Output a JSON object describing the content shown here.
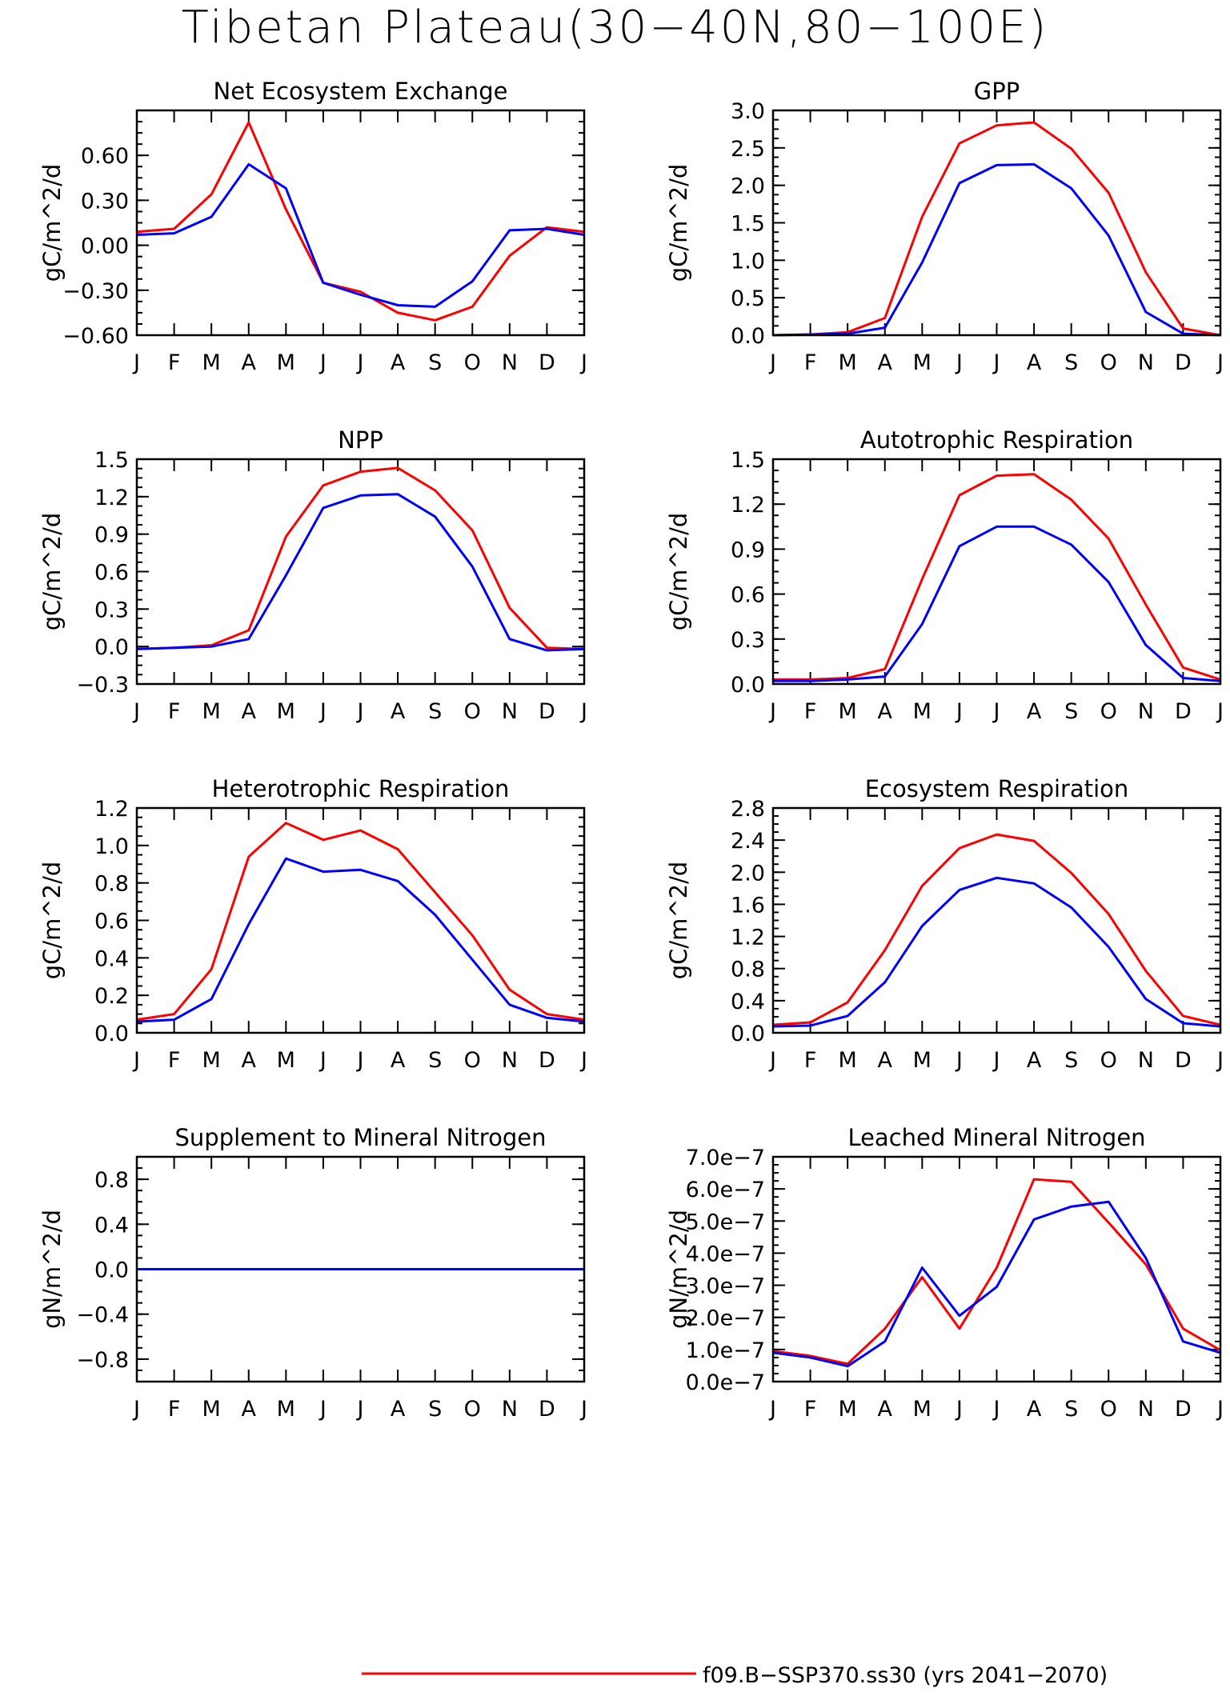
{
  "page": {
    "title": "Tibetan Plateau(30−40N,80−100E)",
    "legend_red": "f09.B−SSP370.ss30 (yrs 2041−2070)"
  },
  "colors": {
    "series1": "#ff0000",
    "series2": "#0000ff"
  },
  "months": [
    "J",
    "F",
    "M",
    "A",
    "M",
    "J",
    "J",
    "A",
    "S",
    "O",
    "N",
    "D",
    "J"
  ],
  "chart_data": [
    {
      "type": "line",
      "title": "Net Ecosystem Exchange",
      "ylabel": "gC/m^2/d",
      "ylim": [
        -0.6,
        0.9
      ],
      "yticks": [
        -0.6,
        -0.3,
        0.0,
        0.3,
        0.6
      ],
      "ytick_labels": [
        "−0.60",
        "−0.30",
        "0.00",
        "0.30",
        "0.60"
      ],
      "x": [
        "J",
        "F",
        "M",
        "A",
        "M",
        "J",
        "J",
        "A",
        "S",
        "O",
        "N",
        "D",
        "J"
      ],
      "series": [
        {
          "values": [
            0.09,
            0.11,
            0.34,
            0.82,
            0.24,
            -0.25,
            -0.31,
            -0.45,
            -0.5,
            -0.41,
            -0.07,
            0.12,
            0.09
          ]
        },
        {
          "values": [
            0.07,
            0.08,
            0.19,
            0.54,
            0.38,
            -0.25,
            -0.33,
            -0.4,
            -0.41,
            -0.24,
            0.1,
            0.11,
            0.07
          ]
        }
      ]
    },
    {
      "type": "line",
      "title": "GPP",
      "ylabel": "gC/m^2/d",
      "ylim": [
        0,
        3.0
      ],
      "yticks": [
        0,
        0.5,
        1.0,
        1.5,
        2.0,
        2.5,
        3.0
      ],
      "ytick_labels": [
        "0.0",
        "0.5",
        "1.0",
        "1.5",
        "2.0",
        "2.5",
        "3.0"
      ],
      "x": [
        "J",
        "F",
        "M",
        "A",
        "M",
        "J",
        "J",
        "A",
        "S",
        "O",
        "N",
        "D",
        "J"
      ],
      "series": [
        {
          "values": [
            0.0,
            0.01,
            0.04,
            0.23,
            1.58,
            2.56,
            2.8,
            2.84,
            2.49,
            1.9,
            0.84,
            0.09,
            0.0
          ]
        },
        {
          "values": [
            0.0,
            0.01,
            0.02,
            0.1,
            0.97,
            2.03,
            2.27,
            2.28,
            1.96,
            1.33,
            0.31,
            0.02,
            0.0
          ]
        }
      ]
    },
    {
      "type": "line",
      "title": "NPP",
      "ylabel": "gC/m^2/d",
      "ylim": [
        -0.3,
        1.5
      ],
      "yticks": [
        -0.3,
        0.0,
        0.3,
        0.6,
        0.9,
        1.2,
        1.5
      ],
      "ytick_labels": [
        "−0.3",
        "0.0",
        "0.3",
        "0.6",
        "0.9",
        "1.2",
        "1.5"
      ],
      "x": [
        "J",
        "F",
        "M",
        "A",
        "M",
        "J",
        "J",
        "A",
        "S",
        "O",
        "N",
        "D",
        "J"
      ],
      "series": [
        {
          "values": [
            -0.02,
            -0.01,
            0.01,
            0.13,
            0.88,
            1.29,
            1.4,
            1.43,
            1.25,
            0.93,
            0.31,
            -0.01,
            -0.02
          ]
        },
        {
          "values": [
            -0.02,
            -0.01,
            0.0,
            0.06,
            0.57,
            1.11,
            1.21,
            1.22,
            1.04,
            0.64,
            0.06,
            -0.03,
            -0.02
          ]
        }
      ]
    },
    {
      "type": "line",
      "title": "Autotrophic Respiration",
      "ylabel": "gC/m^2/d",
      "ylim": [
        0,
        1.5
      ],
      "yticks": [
        0,
        0.3,
        0.6,
        0.9,
        1.2,
        1.5
      ],
      "ytick_labels": [
        "0.0",
        "0.3",
        "0.6",
        "0.9",
        "1.2",
        "1.5"
      ],
      "x": [
        "J",
        "F",
        "M",
        "A",
        "M",
        "J",
        "J",
        "A",
        "S",
        "O",
        "N",
        "D",
        "J"
      ],
      "series": [
        {
          "values": [
            0.03,
            0.03,
            0.04,
            0.1,
            0.7,
            1.26,
            1.39,
            1.4,
            1.23,
            0.97,
            0.53,
            0.11,
            0.03
          ]
        },
        {
          "values": [
            0.02,
            0.02,
            0.03,
            0.05,
            0.4,
            0.92,
            1.05,
            1.05,
            0.93,
            0.68,
            0.26,
            0.04,
            0.02
          ]
        }
      ]
    },
    {
      "type": "line",
      "title": "Heterotrophic Respiration",
      "ylabel": "gC/m^2/d",
      "ylim": [
        0,
        1.2
      ],
      "yticks": [
        0,
        0.2,
        0.4,
        0.6,
        0.8,
        1.0,
        1.2
      ],
      "ytick_labels": [
        "0.0",
        "0.2",
        "0.4",
        "0.6",
        "0.8",
        "1.0",
        "1.2"
      ],
      "x": [
        "J",
        "F",
        "M",
        "A",
        "M",
        "J",
        "J",
        "A",
        "S",
        "O",
        "N",
        "D",
        "J"
      ],
      "series": [
        {
          "values": [
            0.07,
            0.1,
            0.34,
            0.94,
            1.12,
            1.03,
            1.08,
            0.98,
            0.75,
            0.52,
            0.23,
            0.1,
            0.07
          ]
        },
        {
          "values": [
            0.06,
            0.07,
            0.18,
            0.58,
            0.93,
            0.86,
            0.87,
            0.81,
            0.63,
            0.39,
            0.15,
            0.08,
            0.06
          ]
        }
      ]
    },
    {
      "type": "line",
      "title": "Ecosystem Respiration",
      "ylabel": "gC/m^2/d",
      "ylim": [
        0,
        2.8
      ],
      "yticks": [
        0,
        0.4,
        0.8,
        1.2,
        1.6,
        2.0,
        2.4,
        2.8
      ],
      "ytick_labels": [
        "0.0",
        "0.4",
        "0.8",
        "1.2",
        "1.6",
        "2.0",
        "2.4",
        "2.8"
      ],
      "x": [
        "J",
        "F",
        "M",
        "A",
        "M",
        "J",
        "J",
        "A",
        "S",
        "O",
        "N",
        "D",
        "J"
      ],
      "series": [
        {
          "values": [
            0.1,
            0.13,
            0.38,
            1.03,
            1.83,
            2.3,
            2.47,
            2.39,
            1.99,
            1.48,
            0.77,
            0.21,
            0.1
          ]
        },
        {
          "values": [
            0.08,
            0.09,
            0.21,
            0.63,
            1.33,
            1.78,
            1.93,
            1.86,
            1.56,
            1.07,
            0.42,
            0.12,
            0.08
          ]
        }
      ]
    },
    {
      "type": "line",
      "title": "Supplement to Mineral Nitrogen",
      "ylabel": "gN/m^2/d",
      "ylim": [
        -1.0,
        1.0
      ],
      "yticks": [
        -0.8,
        -0.4,
        0.0,
        0.4,
        0.8
      ],
      "ytick_labels": [
        "−0.8",
        "−0.4",
        "0.0",
        "0.4",
        "0.8"
      ],
      "x": [
        "J",
        "F",
        "M",
        "A",
        "M",
        "J",
        "J",
        "A",
        "S",
        "O",
        "N",
        "D",
        "J"
      ],
      "series": [
        {
          "values": [
            0,
            0,
            0,
            0,
            0,
            0,
            0,
            0,
            0,
            0,
            0,
            0,
            0
          ]
        },
        {
          "values": [
            0,
            0,
            0,
            0,
            0,
            0,
            0,
            0,
            0,
            0,
            0,
            0,
            0
          ]
        }
      ]
    },
    {
      "type": "line",
      "title": "Leached Mineral Nitrogen",
      "ylabel": "gN/m^2/d",
      "ylim": [
        0,
        7e-07
      ],
      "yticks": [
        0,
        1e-07,
        2e-07,
        3e-07,
        4e-07,
        5e-07,
        6e-07,
        7e-07
      ],
      "ytick_labels": [
        "0.0e−7",
        "1.0e−7",
        "2.0e−7",
        "3.0e−7",
        "4.0e−7",
        "5.0e−7",
        "6.0e−7",
        "7.0e−7"
      ],
      "x": [
        "J",
        "F",
        "M",
        "A",
        "M",
        "J",
        "J",
        "A",
        "S",
        "O",
        "N",
        "D",
        "J"
      ],
      "series": [
        {
          "values": [
            9.5e-08,
            8e-08,
            5.5e-08,
            1.65e-07,
            3.25e-07,
            1.65e-07,
            3.55e-07,
            6.3e-07,
            6.22e-07,
            4.95e-07,
            3.65e-07,
            1.65e-07,
            9.8e-08
          ]
        },
        {
          "values": [
            9e-08,
            7.5e-08,
            4.8e-08,
            1.25e-07,
            3.55e-07,
            2.05e-07,
            2.95e-07,
            5.05e-07,
            5.45e-07,
            5.6e-07,
            3.85e-07,
            1.25e-07,
            9e-08
          ]
        }
      ]
    }
  ]
}
